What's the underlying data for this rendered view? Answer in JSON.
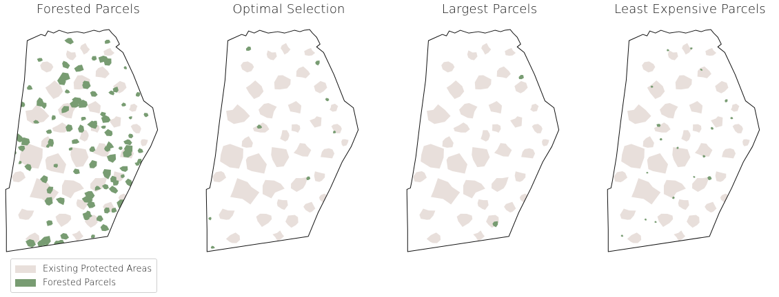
{
  "colors": {
    "protected": "#e8dfdb",
    "forested": "#789c72",
    "outline": "#111111",
    "background": "#ffffff"
  },
  "panels": [
    {
      "title": "Forested Parcels",
      "show_forested": "all"
    },
    {
      "title": "Optimal Selection",
      "show_forested": "optimal"
    },
    {
      "title": "Largest Parcels",
      "show_forested": "largest"
    },
    {
      "title": "Least Expensive Parcels",
      "show_forested": "cheapest"
    }
  ],
  "legend": {
    "items": [
      {
        "label": "Existing Protected Areas",
        "color_key": "protected"
      },
      {
        "label": "Forested Parcels",
        "color_key": "forested"
      }
    ]
  }
}
